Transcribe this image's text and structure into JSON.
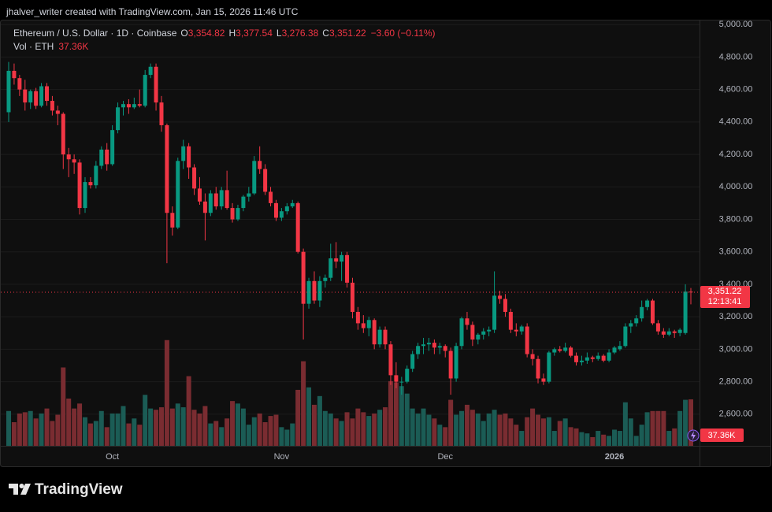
{
  "header": {
    "attribution": "jhalver_writer created with TradingView.com, Jan 15, 2026 11:46 UTC"
  },
  "chart_data": {
    "type": "candlestick",
    "symbol": "Ethereum / U.S. Dollar · 1D · Coinbase",
    "legend": {
      "open_key": "O",
      "open": "3,354.82",
      "high_key": "H",
      "high": "3,377.54",
      "low_key": "L",
      "low": "3,276.38",
      "close_key": "C",
      "close": "3,351.22",
      "change": "−3.60 (−0.11%)"
    },
    "volume_title": "Vol · ETH",
    "volume_last_label": "37.36K",
    "last_price_label": "3,351.22",
    "countdown": "12:13:41",
    "up_color": "#089981",
    "down_color": "#f23645",
    "up_volume_color": "#1b5c55",
    "down_volume_color": "#7a2c31",
    "ylim": [
      2405,
      5030
    ],
    "yticks": [
      {
        "value": 2600,
        "label": "2,600.00"
      },
      {
        "value": 2800,
        "label": "2,800.00"
      },
      {
        "value": 3000,
        "label": "3,000.00"
      },
      {
        "value": 3200,
        "label": "3,200.00"
      },
      {
        "value": 3400,
        "label": "3,400.00"
      },
      {
        "value": 3600,
        "label": "3,600.00"
      },
      {
        "value": 3800,
        "label": "3,800.00"
      },
      {
        "value": 4000,
        "label": "4,000.00"
      },
      {
        "value": 4200,
        "label": "4,200.00"
      },
      {
        "value": 4400,
        "label": "4,400.00"
      },
      {
        "value": 4600,
        "label": "4,600.00"
      },
      {
        "value": 4800,
        "label": "4,800.00"
      },
      {
        "value": 5000,
        "label": "5,000.00"
      }
    ],
    "grid": true,
    "categories": [
      null,
      null,
      null,
      null,
      null,
      null,
      null,
      null,
      null,
      null,
      null,
      null,
      null,
      null,
      null,
      null,
      null,
      null,
      null,
      "Oct",
      null,
      null,
      null,
      null,
      null,
      null,
      null,
      null,
      null,
      null,
      null,
      null,
      null,
      null,
      null,
      null,
      null,
      null,
      null,
      null,
      null,
      null,
      null,
      null,
      null,
      null,
      null,
      null,
      null,
      null,
      "Nov",
      null,
      null,
      null,
      null,
      null,
      null,
      null,
      null,
      null,
      null,
      null,
      null,
      null,
      null,
      null,
      null,
      null,
      null,
      null,
      null,
      null,
      null,
      null,
      null,
      null,
      null,
      null,
      null,
      null,
      "Dec",
      null,
      null,
      null,
      null,
      null,
      null,
      null,
      null,
      null,
      null,
      null,
      null,
      null,
      null,
      null,
      null,
      null,
      null,
      null,
      null,
      null,
      null,
      null,
      null,
      null,
      null,
      null,
      null,
      null,
      null,
      "2026",
      null,
      null,
      null,
      null,
      null,
      null,
      null,
      null,
      null,
      null,
      null,
      null,
      null,
      null
    ],
    "open": [
      4460,
      4715,
      4670,
      4600,
      4520,
      4590,
      4500,
      4620,
      4530,
      4470,
      4450,
      4200,
      4170,
      4150,
      3870,
      4030,
      4010,
      4130,
      4230,
      4140,
      4350,
      4490,
      4510,
      4490,
      4510,
      4500,
      4690,
      4740,
      4520,
      4380,
      3840,
      3750,
      4160,
      4250,
      4120,
      3990,
      3910,
      3840,
      3960,
      3880,
      3980,
      3870,
      3800,
      3870,
      3940,
      3960,
      4160,
      4110,
      3970,
      3900,
      3810,
      3850,
      3880,
      3900,
      3600,
      3280,
      3420,
      3300,
      3420,
      3440,
      3560,
      3540,
      3580,
      3410,
      3230,
      3160,
      3130,
      3180,
      3030,
      3120,
      3030,
      2840,
      2800,
      2800,
      2880,
      2970,
      3020,
      3030,
      3040,
      3010,
      3020,
      2990,
      2820,
      3020,
      3190,
      3150,
      3060,
      3090,
      3110,
      3120,
      3330,
      3310,
      3230,
      3120,
      3110,
      3140,
      2970,
      2940,
      2820,
      2800,
      2980,
      3000,
      2990,
      3010,
      2960,
      2920,
      2930,
      2950,
      2940,
      2960,
      2930,
      2980,
      3000,
      3020,
      3140,
      3160,
      3190,
      3260,
      3300,
      3160,
      3110,
      3090,
      3110,
      3100,
      3100,
      3354.82
    ],
    "high": [
      4770,
      4760,
      4690,
      4660,
      4600,
      4610,
      4640,
      4640,
      4560,
      4500,
      4460,
      4240,
      4200,
      4170,
      4060,
      4060,
      4160,
      4250,
      4270,
      4380,
      4520,
      4530,
      4540,
      4550,
      4600,
      4720,
      4760,
      4760,
      4560,
      4390,
      3880,
      4180,
      4290,
      4270,
      4140,
      4060,
      3960,
      3980,
      4000,
      4000,
      4100,
      3900,
      3890,
      3950,
      4000,
      4190,
      4250,
      4140,
      4000,
      3920,
      3870,
      3900,
      3920,
      3910,
      3620,
      3440,
      3480,
      3450,
      3460,
      3650,
      3660,
      3600,
      3600,
      3440,
      3260,
      3210,
      3200,
      3190,
      3140,
      3140,
      3050,
      2920,
      2830,
      2900,
      2990,
      3040,
      3070,
      3070,
      3060,
      3040,
      3030,
      3010,
      3040,
      3200,
      3230,
      3170,
      3100,
      3130,
      3140,
      3480,
      3360,
      3340,
      3250,
      3160,
      3150,
      3160,
      3000,
      2960,
      2850,
      2990,
      3010,
      3020,
      3040,
      3020,
      2980,
      2960,
      2980,
      2960,
      2980,
      2970,
      3000,
      3020,
      3050,
      3160,
      3180,
      3210,
      3300,
      3310,
      3310,
      3180,
      3130,
      3130,
      3120,
      3130,
      3400,
      3377.54
    ],
    "low": [
      4400,
      4630,
      4560,
      4470,
      4480,
      4480,
      4490,
      4500,
      4440,
      4380,
      4110,
      4060,
      4080,
      3830,
      3840,
      3990,
      3990,
      4110,
      4100,
      4130,
      4330,
      4440,
      4450,
      4480,
      4490,
      4490,
      4670,
      4470,
      4340,
      3530,
      3700,
      3740,
      4110,
      4050,
      3950,
      3890,
      3670,
      3820,
      3860,
      3860,
      3860,
      3780,
      3790,
      3850,
      3910,
      3950,
      4080,
      3950,
      3880,
      3790,
      3790,
      3830,
      3870,
      3590,
      3060,
      3250,
      3280,
      3260,
      3380,
      3420,
      3500,
      3420,
      3380,
      3190,
      3120,
      3100,
      3080,
      3000,
      3010,
      3000,
      2780,
      2760,
      2720,
      2790,
      2860,
      2940,
      2970,
      2990,
      2970,
      2970,
      2950,
      2720,
      2800,
      3000,
      3120,
      3020,
      3030,
      3060,
      3080,
      3100,
      3280,
      3200,
      3100,
      3080,
      3090,
      2950,
      2900,
      2790,
      2780,
      2790,
      2960,
      2980,
      2980,
      2950,
      2900,
      2900,
      2910,
      2920,
      2930,
      2920,
      2920,
      2970,
      2990,
      3010,
      3100,
      3140,
      3170,
      3240,
      3150,
      3090,
      3070,
      3080,
      3070,
      3080,
      3090,
      3276.38
    ],
    "close": [
      4715,
      4670,
      4600,
      4520,
      4590,
      4500,
      4620,
      4530,
      4470,
      4450,
      4200,
      4170,
      4150,
      3870,
      4030,
      4010,
      4130,
      4230,
      4140,
      4350,
      4490,
      4510,
      4490,
      4510,
      4500,
      4690,
      4740,
      4520,
      4380,
      3840,
      3750,
      4160,
      4250,
      4120,
      3990,
      3910,
      3840,
      3960,
      3880,
      3980,
      3870,
      3800,
      3870,
      3940,
      3960,
      4160,
      4110,
      3970,
      3900,
      3810,
      3850,
      3880,
      3900,
      3600,
      3280,
      3420,
      3300,
      3420,
      3440,
      3560,
      3540,
      3580,
      3410,
      3230,
      3160,
      3130,
      3180,
      3030,
      3120,
      3030,
      2840,
      2800,
      2800,
      2880,
      2970,
      3020,
      3030,
      3040,
      3010,
      3020,
      2990,
      2820,
      3020,
      3190,
      3150,
      3060,
      3090,
      3110,
      3120,
      3330,
      3310,
      3230,
      3120,
      3110,
      3140,
      2970,
      2940,
      2820,
      2800,
      2980,
      3000,
      2990,
      3010,
      2960,
      2920,
      2930,
      2950,
      2940,
      2960,
      2930,
      2980,
      3010,
      3020,
      3140,
      3160,
      3190,
      3260,
      3300,
      3160,
      3110,
      3090,
      3110,
      3100,
      3120,
      3354.82,
      3351.22
    ],
    "volume": [
      28000,
      19000,
      26000,
      27000,
      28000,
      22000,
      26000,
      30000,
      20000,
      25000,
      63000,
      38000,
      30000,
      34000,
      23000,
      18000,
      20000,
      28000,
      15000,
      26000,
      26000,
      32000,
      18000,
      22000,
      17000,
      41000,
      30000,
      29000,
      31000,
      85000,
      30000,
      34000,
      31000,
      56000,
      29000,
      26000,
      32000,
      18000,
      20000,
      15000,
      22000,
      36000,
      34000,
      30000,
      17000,
      23000,
      26000,
      19000,
      24000,
      25000,
      15000,
      13000,
      18000,
      45000,
      68000,
      47000,
      33000,
      40000,
      28000,
      26000,
      22000,
      20000,
      27000,
      22000,
      30000,
      27000,
      24000,
      26000,
      29000,
      31000,
      52000,
      51000,
      48000,
      42000,
      30000,
      26000,
      30000,
      25000,
      22000,
      17000,
      15000,
      37000,
      25000,
      28000,
      33000,
      29000,
      26000,
      20000,
      26000,
      29000,
      25000,
      26000,
      22000,
      17000,
      12000,
      23000,
      30000,
      25000,
      22000,
      23000,
      12000,
      20000,
      22000,
      15000,
      14000,
      11000,
      10000,
      7000,
      12000,
      9000,
      8000,
      13000,
      12000,
      35000,
      22000,
      8000,
      17000,
      27000,
      28000,
      28000,
      28000,
      12000,
      14000,
      28000,
      37000,
      37360
    ]
  },
  "footer": {
    "brand": "TradingView"
  }
}
